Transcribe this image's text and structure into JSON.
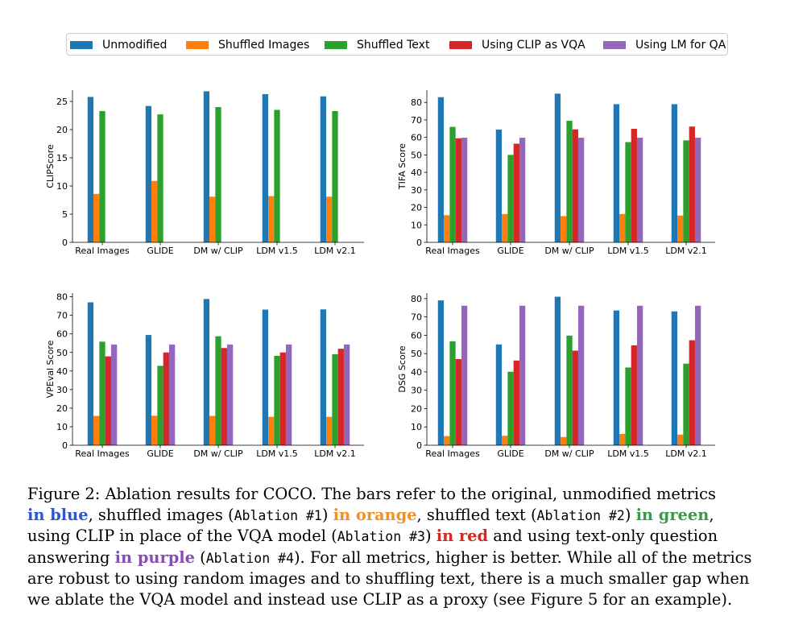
{
  "legend": {
    "items": [
      {
        "label": "Unmodified",
        "color": "#1f77b4"
      },
      {
        "label": "Shuffled Images",
        "color": "#ff7f0e"
      },
      {
        "label": "Shuffled Text",
        "color": "#2ca02c"
      },
      {
        "label": "Using CLIP as VQA",
        "color": "#d62728"
      },
      {
        "label": "Using LM for QA",
        "color": "#9467bd"
      }
    ]
  },
  "chart_data": [
    {
      "type": "bar",
      "ylabel": "CLIPScore",
      "ylim": [
        0,
        27
      ],
      "yticks": [
        0,
        5,
        10,
        15,
        20,
        25
      ],
      "categories": [
        "Real Images",
        "GLIDE",
        "DM w/ CLIP",
        "LDM v1.5",
        "LDM v2.1"
      ],
      "series": [
        {
          "name": "Unmodified",
          "values": [
            25.8,
            24.2,
            26.8,
            26.3,
            25.9
          ]
        },
        {
          "name": "Shuffled Images",
          "values": [
            8.6,
            10.9,
            8.1,
            8.2,
            8.1
          ]
        },
        {
          "name": "Shuffled Text",
          "values": [
            23.3,
            22.7,
            24.0,
            23.5,
            23.3
          ]
        }
      ]
    },
    {
      "type": "bar",
      "ylabel": "TIFA Score",
      "ylim": [
        0,
        87
      ],
      "yticks": [
        0,
        10,
        20,
        30,
        40,
        50,
        60,
        70,
        80
      ],
      "categories": [
        "Real Images",
        "GLIDE",
        "DM w/ CLIP",
        "LDM v1.5",
        "LDM v2.1"
      ],
      "series": [
        {
          "name": "Unmodified",
          "values": [
            83,
            64.5,
            85,
            79,
            79
          ]
        },
        {
          "name": "Shuffled Images",
          "values": [
            15.5,
            16.2,
            15.0,
            16.2,
            15.3
          ]
        },
        {
          "name": "Shuffled Text",
          "values": [
            66,
            50,
            69.5,
            57.3,
            58.3
          ]
        },
        {
          "name": "Using CLIP as VQA",
          "values": [
            59.5,
            56.4,
            64.6,
            64.9,
            66.2
          ]
        },
        {
          "name": "Using LM for QA",
          "values": [
            59.8,
            59.8,
            59.8,
            59.8,
            59.8
          ]
        }
      ]
    },
    {
      "type": "bar",
      "ylabel": "VPEval Score",
      "ylim": [
        0,
        82
      ],
      "yticks": [
        0,
        10,
        20,
        30,
        40,
        50,
        60,
        70,
        80
      ],
      "categories": [
        "Real Images",
        "GLIDE",
        "DM w/ CLIP",
        "LDM v1.5",
        "LDM v2.1"
      ],
      "series": [
        {
          "name": "Unmodified",
          "values": [
            77,
            59.4,
            78.8,
            73.1,
            73.2
          ]
        },
        {
          "name": "Shuffled Images",
          "values": [
            15.8,
            15.9,
            15.8,
            15.3,
            15.3
          ]
        },
        {
          "name": "Shuffled Text",
          "values": [
            55.8,
            42.8,
            58.7,
            48.2,
            49.0
          ]
        },
        {
          "name": "Using CLIP as VQA",
          "values": [
            47.9,
            50.0,
            52.4,
            50.0,
            52.0
          ]
        },
        {
          "name": "Using LM for QA",
          "values": [
            54.3,
            54.3,
            54.3,
            54.3,
            54.3
          ]
        }
      ]
    },
    {
      "type": "bar",
      "ylabel": "DSG Score",
      "ylim": [
        0,
        83
      ],
      "yticks": [
        0,
        10,
        20,
        30,
        40,
        50,
        60,
        70,
        80
      ],
      "categories": [
        "Real Images",
        "GLIDE",
        "DM w/ CLIP",
        "LDM v1.5",
        "LDM v2.1"
      ],
      "series": [
        {
          "name": "Unmodified",
          "values": [
            79,
            55,
            81,
            73.5,
            73
          ]
        },
        {
          "name": "Shuffled Images",
          "values": [
            5.0,
            5.2,
            4.5,
            6.2,
            5.8
          ]
        },
        {
          "name": "Shuffled Text",
          "values": [
            56.7,
            40.1,
            59.8,
            42.4,
            44.5
          ]
        },
        {
          "name": "Using CLIP as VQA",
          "values": [
            47.0,
            46.2,
            51.6,
            54.5,
            57.3
          ]
        },
        {
          "name": "Using LM for QA",
          "values": [
            76.1,
            76.1,
            76.1,
            76.1,
            76.1
          ]
        }
      ]
    }
  ],
  "caption": {
    "l1_a": "Figure 2:  Ablation results for COCO. The bars refer to the original, unmodified metrics",
    "l2_blue": "in blue",
    "l2_a": ", shuffled images (",
    "l2_m1": "Ablation #1",
    "l2_b": ") ",
    "l2_orange": "in orange",
    "l2_c": ", shuffled text (",
    "l2_m2": "Ablation #2",
    "l2_d": ") ",
    "l2_green": "in green",
    "l2_e": ",",
    "l3_a": "using CLIP in place of the VQA model (",
    "l3_m3": "Ablation #3",
    "l3_b": ") ",
    "l3_red": "in red",
    "l3_c": " and using text-only question",
    "l4_a": "answering ",
    "l4_purple": "in purple",
    "l4_b": " (",
    "l4_m4": "Ablation #4",
    "l4_c": "). For all metrics, higher is better. While all of the metrics",
    "l5": "are robust to using random images and to shuffling text, there is a much smaller gap when",
    "l6": "we ablate the VQA model and instead use CLIP as a proxy (see Figure 5 for an example)."
  }
}
